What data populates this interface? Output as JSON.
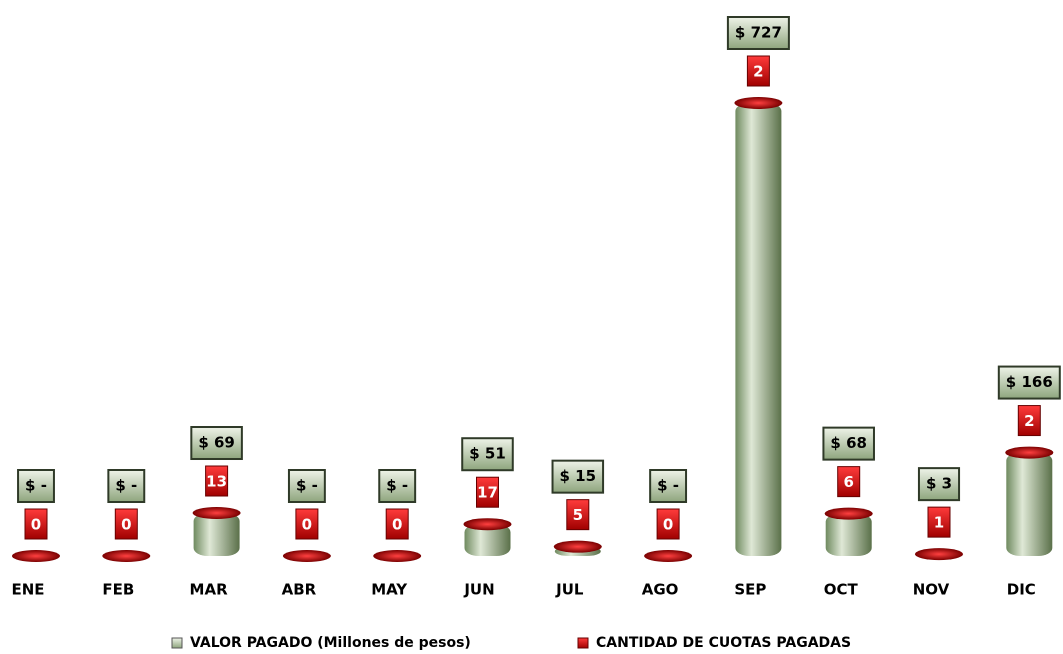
{
  "chart_data": {
    "type": "bar",
    "categories": [
      "ENE",
      "FEB",
      "MAR",
      "ABR",
      "MAY",
      "JUN",
      "JUL",
      "AGO",
      "SEP",
      "OCT",
      "NOV",
      "DIC"
    ],
    "series": [
      {
        "name": "VALOR PAGADO (Millones de pesos)",
        "color": "#8a9f7c",
        "values": [
          0,
          0,
          69,
          0,
          0,
          51,
          15,
          0,
          727,
          68,
          3,
          166
        ],
        "value_labels": [
          "$ -",
          "$ -",
          "$ 69",
          "$ -",
          "$ -",
          "$ 51",
          "$ 15",
          "$ -",
          "$ 727",
          "$ 68",
          "$ 3",
          "$ 166"
        ]
      },
      {
        "name": "CANTIDAD DE CUOTAS PAGADAS",
        "color": "#c00000",
        "values": [
          0,
          0,
          13,
          0,
          0,
          17,
          5,
          0,
          2,
          6,
          1,
          2
        ]
      }
    ],
    "legend": "bottom"
  }
}
